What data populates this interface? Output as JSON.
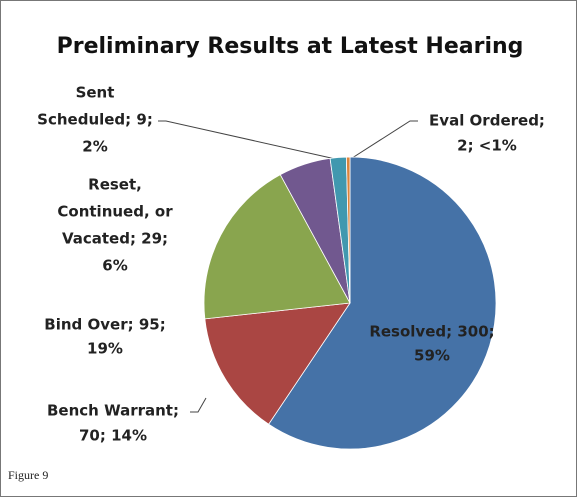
{
  "chart_data": {
    "type": "pie",
    "title": "Preliminary Results at Latest Hearing",
    "categories": [
      "Resolved",
      "Bench Warrant",
      "Bind Over",
      "Reset, Continued, or Vacated",
      "Sent Scheduled",
      "Eval Ordered"
    ],
    "values": [
      300,
      70,
      95,
      29,
      9,
      2
    ],
    "value_labels": [
      [
        "Resolved; 300;",
        "59%"
      ],
      [
        "Bench Warrant;",
        "70; 14%"
      ],
      [
        "Bind Over; 95;",
        "19%"
      ],
      [
        "Reset,",
        "Continued, or",
        "Vacated; 29;",
        "6%"
      ],
      [
        "Sent",
        "Scheduled; 9;",
        "2%"
      ],
      [
        "Eval Ordered;",
        "2; <1%"
      ]
    ],
    "colors": [
      "#4572A7",
      "#AA4643",
      "#89A54E",
      "#71588F",
      "#4198AF",
      "#DB843D"
    ],
    "caption": "Figure 9"
  }
}
